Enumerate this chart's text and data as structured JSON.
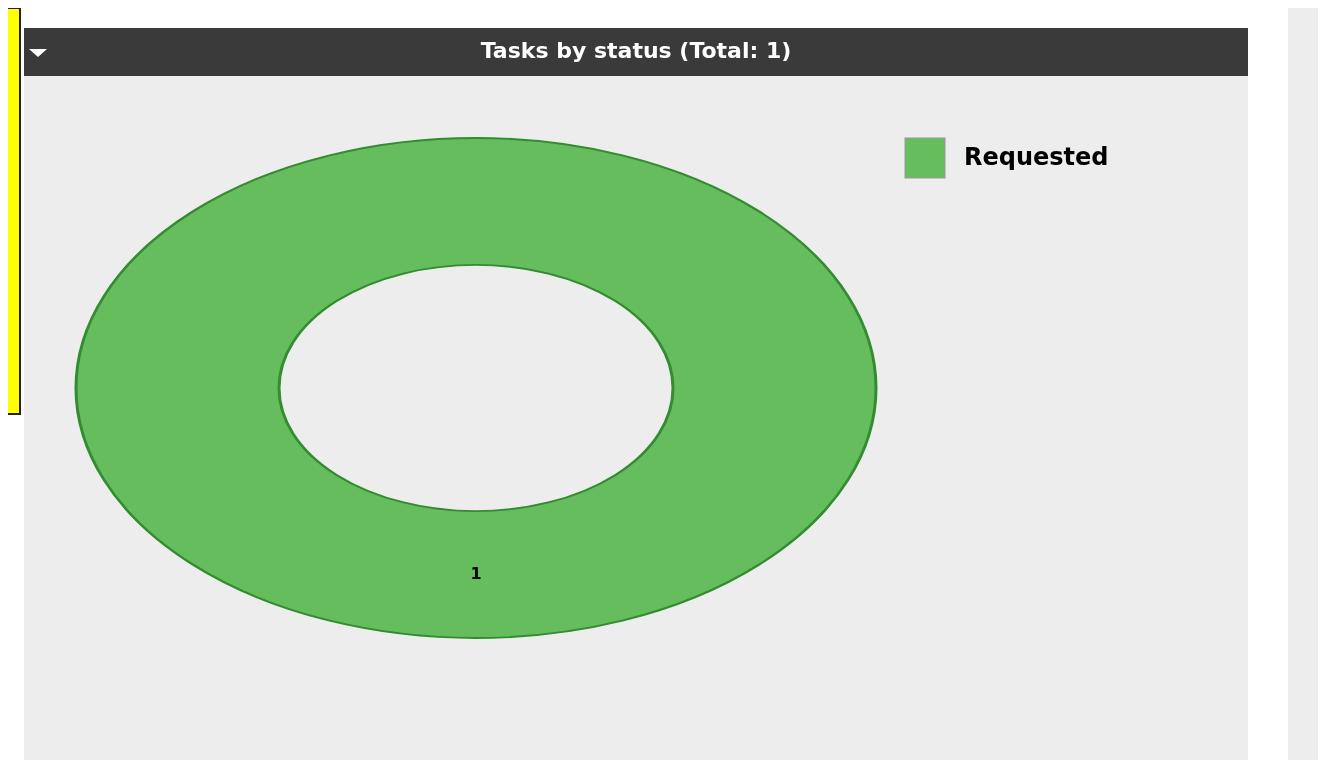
{
  "chart_data": {
    "type": "donut",
    "title": "Tasks by status (Total: 1)",
    "categories": [
      "Requested"
    ],
    "values": [
      1
    ],
    "colors": [
      "#66bd5e"
    ],
    "data_labels": true,
    "legend": "top right"
  }
}
